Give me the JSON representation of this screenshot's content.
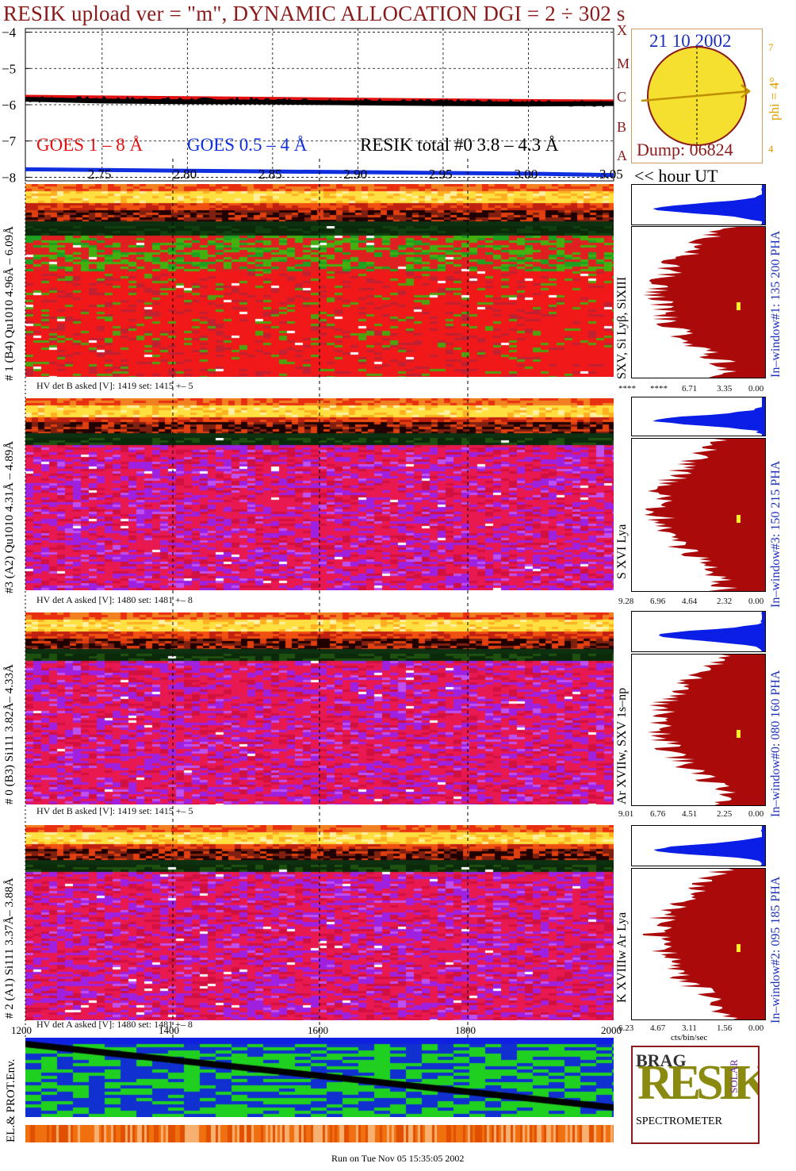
{
  "title": "RESIK upload ver = \"m\", DYNAMIC ALLOCATION  DGI =   2 ÷ 302 s",
  "chart_data": {
    "type": "line",
    "title": "RESIK upload ver = \"m\", DYNAMIC ALLOCATION  DGI =   2 ÷ 302 s",
    "xlabel": "<< hour UT",
    "x_ticks": [
      "2.75",
      "2.80",
      "2.85",
      "2.90",
      "2.95",
      "3.00",
      "3.05"
    ],
    "xlim": [
      2.705,
      3.05
    ],
    "ylim": [
      -8.1,
      -3.9
    ],
    "y_ticks": [
      "−4",
      "−5",
      "−6",
      "−7",
      "−8"
    ],
    "y_values": [
      -4,
      -5,
      -6,
      -7,
      -8
    ],
    "grid": true,
    "series": [
      {
        "name": "GOES 1 – 8 Å",
        "color": "#e01010",
        "x": [
          2.705,
          2.75,
          2.8,
          2.85,
          2.9,
          2.95,
          3.0,
          3.05
        ],
        "values": [
          -5.78,
          -5.8,
          -5.82,
          -5.84,
          -5.86,
          -5.88,
          -5.9,
          -5.91
        ]
      },
      {
        "name": "GOES 0.5 – 4 Å",
        "color": "#1030e0",
        "x": [
          2.705,
          2.75,
          2.8,
          2.85,
          2.9,
          2.95,
          3.0,
          3.05
        ],
        "values": [
          -7.78,
          -7.8,
          -7.82,
          -7.84,
          -7.86,
          -7.88,
          -7.9,
          -7.94
        ]
      },
      {
        "name": "RESIK total #0  3.8 – 4.3 Å",
        "color": "#000000",
        "x": [
          2.705,
          2.75,
          2.8,
          2.85,
          2.9,
          2.95,
          3.0,
          3.05
        ],
        "values": [
          -5.85,
          -5.9,
          -5.92,
          -5.93,
          -5.95,
          -5.97,
          -5.98,
          -5.97
        ]
      }
    ]
  },
  "legend": {
    "goes18": "GOES 1 – 8 Å",
    "goes054": "GOES 0.5 – 4 Å",
    "resik": "RESIK total #0  3.8 – 4.3 Å"
  },
  "x_axis_label": "<< hour UT",
  "inset": {
    "date": "21 10 2002",
    "dump": "Dump: 06824",
    "phi": "phi =  4°",
    "tick_top": "7",
    "tick_bottom": "4",
    "letters": [
      "X",
      "M",
      "C",
      "B",
      "A"
    ]
  },
  "detectors": [
    {
      "left_label": "# 1 (B4) Qu1010 4.96Å – 6.09Å",
      "right_label": "SXV, Si Lyβ, SiXIII",
      "window_label": "In–window#1:  135 200 PHA",
      "hv_label": "HV det B asked [V]:  1419 set:  1415  +–    5",
      "count_ticks": [
        "****",
        "****",
        "6.71",
        "3.35",
        "0.00"
      ],
      "main_color": "red-green"
    },
    {
      "left_label": "#3 (A2) Qu1010  4.31Å – 4.89Å",
      "right_label": "S XVI Lya",
      "window_label": "In–window#3:  150 215 PHA",
      "hv_label": "HV det A asked [V]:  1480 set:  1481  +–    8",
      "count_ticks": [
        "9.28",
        "6.96",
        "4.64",
        "2.32",
        "0.00"
      ],
      "main_color": "purple-red"
    },
    {
      "left_label": "# 0 (B3) Si111  3.82Å– 4.33Å",
      "right_label": "Ar XVIIw,  SXV 1s–np",
      "window_label": "In–window#0:  080 160 PHA",
      "hv_label": "HV det B asked [V]:  1419 set:  1415  +–    5",
      "count_ticks": [
        "9.01",
        "6.76",
        "4.51",
        "2.25",
        "0.00"
      ],
      "main_color": "purple-red"
    },
    {
      "left_label": "# 2 (A1) Si111  3.37Å– 3.88Å",
      "right_label": "K XVIIIw  Ar Lya",
      "window_label": "In–window#2:  095 185 PHA",
      "hv_label": "HV det A asked [V]:  1480 set:  1481  +–    8",
      "count_ticks": [
        "6.23",
        "4.67",
        "3.11",
        "1.56",
        "0.00"
      ],
      "main_color": "purple-red"
    }
  ],
  "count_axis_label": "cts/bin/sec",
  "bottom_x_ticks": [
    "1200",
    "1400",
    "1600",
    "1800",
    "2000"
  ],
  "env_label": "EL.& PROT.Env.",
  "logo": {
    "letters": "RESIK",
    "top": "BRAG",
    "side": "SOLAR",
    "bottom": "SPECTROMETER"
  },
  "footer": "Run on Tue Nov 05 15:35:05 2002",
  "colors": {
    "title": "#8b1a1a",
    "goes18": "#e01010",
    "goes054": "#1030e0",
    "histogram": "#aa0a0a",
    "small_hist": "#0a1ee6",
    "inset_blue": "#1a2fc0",
    "inset_orange": "#e0a000"
  }
}
